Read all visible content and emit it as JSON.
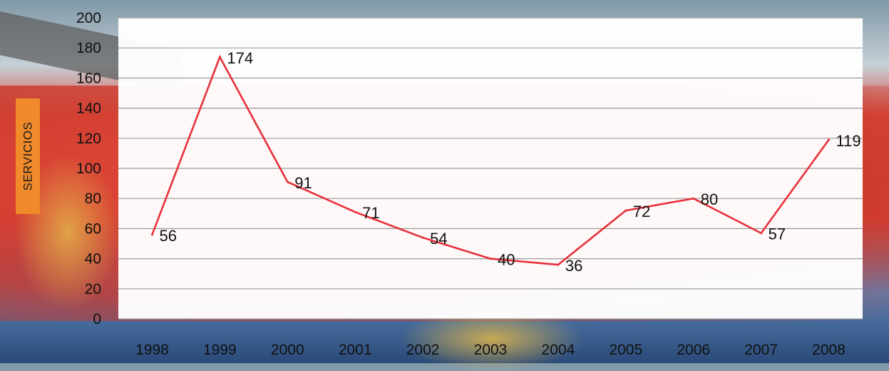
{
  "chart_data": {
    "type": "line",
    "title": "",
    "xlabel": "",
    "ylabel": "SERVICIOS",
    "categories": [
      "1998",
      "1999",
      "2000",
      "2001",
      "2002",
      "2003",
      "2004",
      "2005",
      "2006",
      "2007",
      "2008"
    ],
    "series": [
      {
        "values": [
          56,
          174,
          91,
          71,
          54,
          40,
          36,
          72,
          80,
          57,
          119
        ]
      }
    ],
    "ylim": [
      0,
      200
    ],
    "yticks": [
      0,
      20,
      40,
      60,
      80,
      100,
      120,
      140,
      160,
      180,
      200
    ],
    "grid": true,
    "legend": "none",
    "data_labels": [
      "56",
      "174",
      "91",
      "71",
      "54",
      "40",
      "36",
      "72",
      "80",
      "57",
      "119"
    ],
    "line_color": "#e8303a",
    "plot_background": "#ffffff",
    "ylabel_background": "#f08a2a"
  }
}
